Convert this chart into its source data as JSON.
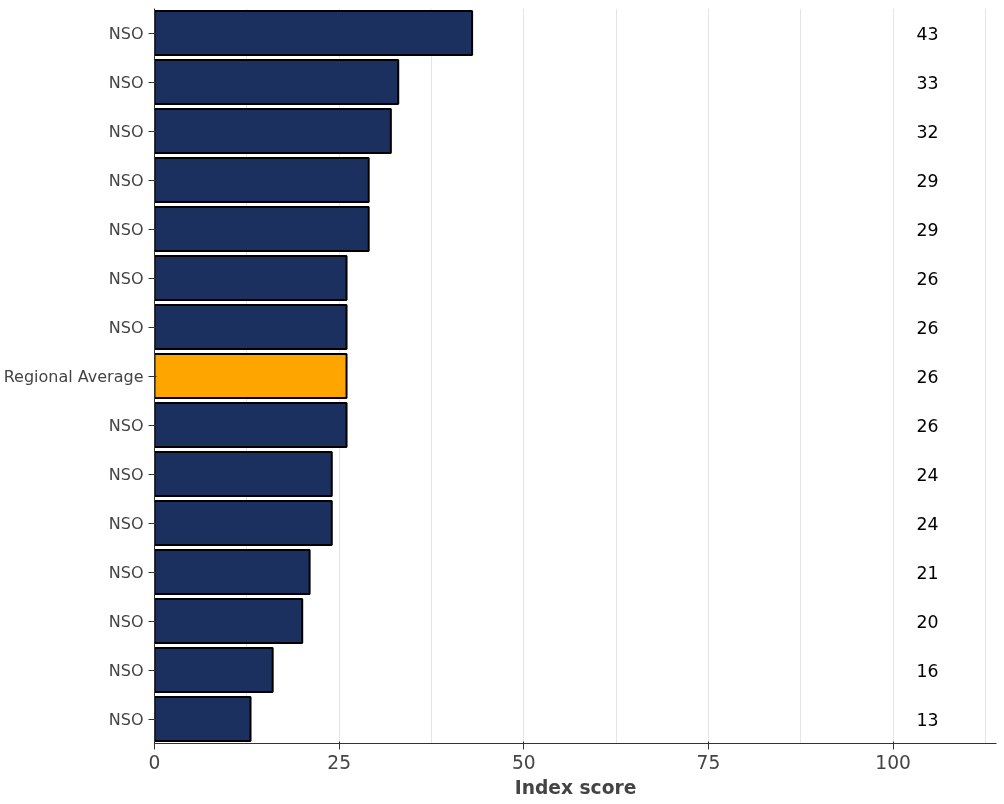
{
  "chart_data": {
    "type": "bar",
    "orientation": "horizontal",
    "xlabel": "Index score",
    "categories": [
      "NSO",
      "NSO",
      "NSO",
      "NSO",
      "NSO",
      "NSO",
      "NSO",
      "Regional Average",
      "NSO",
      "NSO",
      "NSO",
      "NSO",
      "NSO",
      "NSO",
      "NSO"
    ],
    "values": [
      43,
      33,
      32,
      29,
      29,
      26,
      26,
      26,
      26,
      24,
      24,
      21,
      20,
      16,
      13
    ],
    "colors": [
      "#1c3060",
      "#1c3060",
      "#1c3060",
      "#1c3060",
      "#1c3060",
      "#1c3060",
      "#1c3060",
      "#ffa500",
      "#1c3060",
      "#1c3060",
      "#1c3060",
      "#1c3060",
      "#1c3060",
      "#1c3060",
      "#1c3060"
    ],
    "xlim": [
      0,
      114
    ],
    "xticks": [
      0,
      {
        "value": 12.5,
        "label": null
      },
      25,
      {
        "value": 37.5,
        "label": null
      },
      50,
      {
        "value": 62.5,
        "label": null
      },
      75,
      {
        "value": 87.5,
        "label": null
      },
      100,
      {
        "value": 112.5,
        "label": null
      }
    ],
    "grid": "x",
    "data_labels": true
  }
}
